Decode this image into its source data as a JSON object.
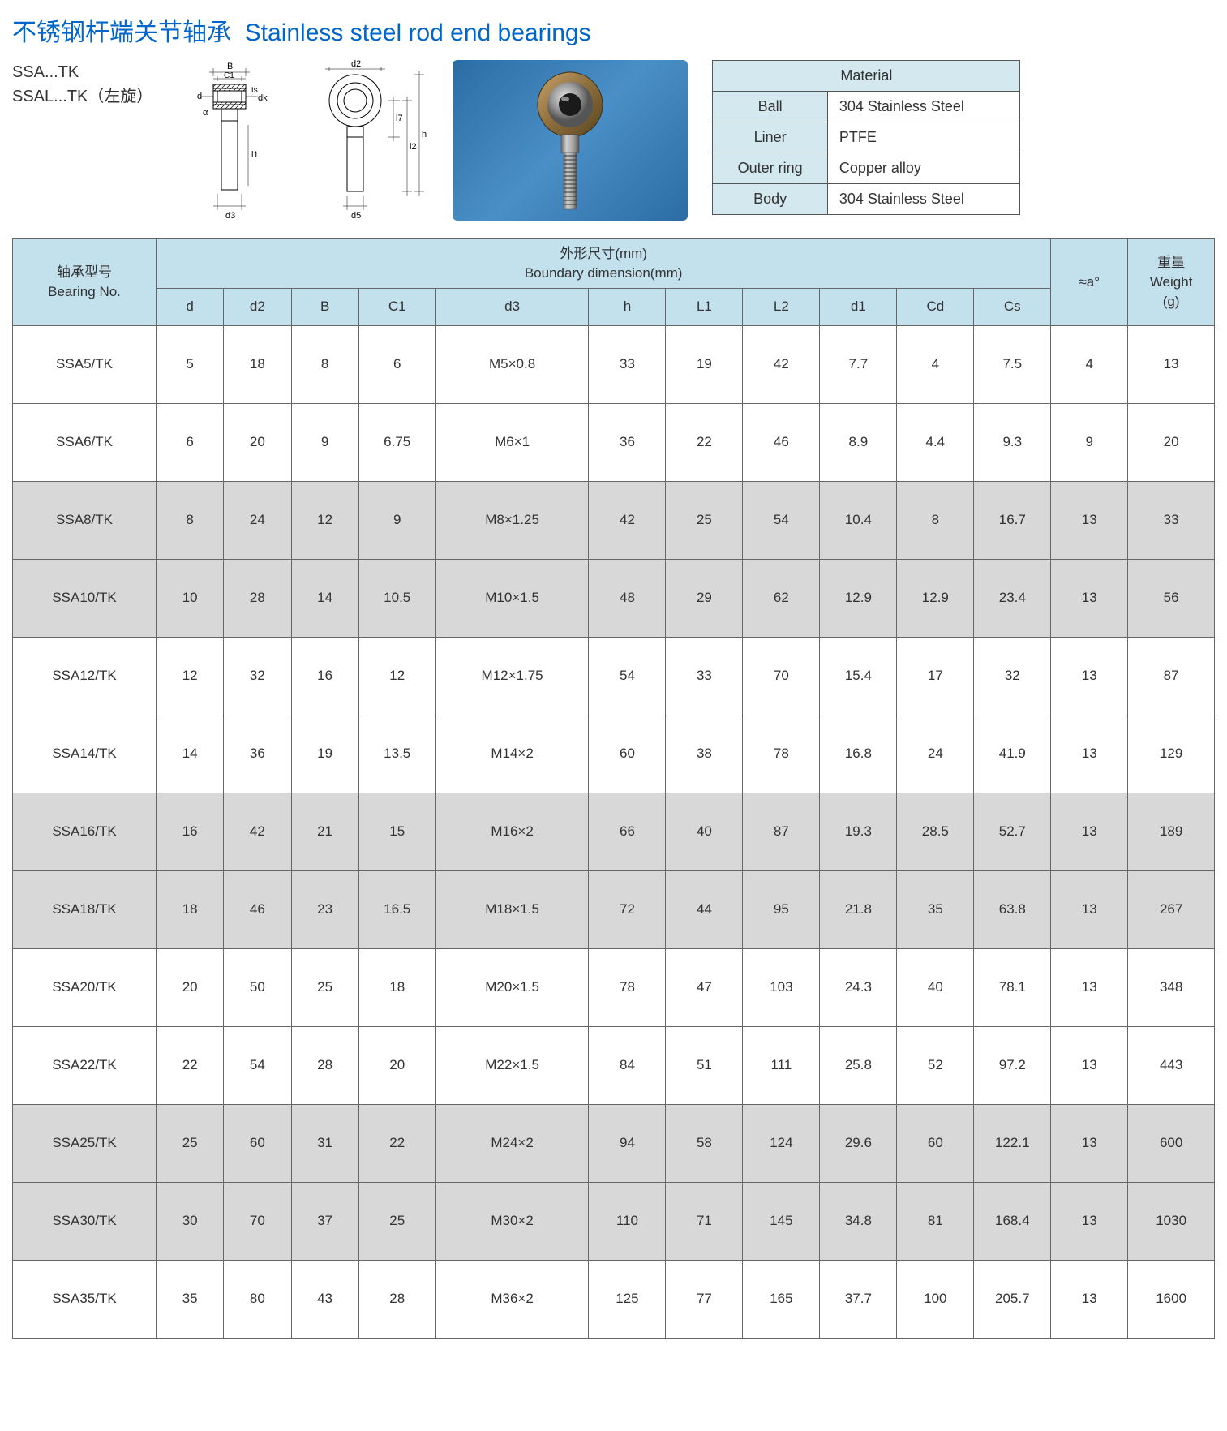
{
  "title_cn": "不锈钢杆端关节轴承",
  "title_en": "Stainless steel rod end bearings",
  "model_line1": "SSA...TK",
  "model_line2": "SSAL...TK（左旋）",
  "diagram_labels": {
    "B": "B",
    "C1": "C1",
    "ts": "ts",
    "d": "d",
    "dk": "dk",
    "a": "α",
    "l1": "l1",
    "d3": "d3",
    "d2": "d2",
    "l7": "l7",
    "l2": "l2",
    "h": "h",
    "d5": "d5"
  },
  "material": {
    "header": "Material",
    "rows": [
      {
        "label": "Ball",
        "value": "304 Stainless Steel"
      },
      {
        "label": "Liner",
        "value": "PTFE"
      },
      {
        "label": "Outer ring",
        "value": "Copper alloy"
      },
      {
        "label": "Body",
        "value": "304 Stainless Steel"
      }
    ]
  },
  "table": {
    "bearing_no_cn": "轴承型号",
    "bearing_no_en": "Bearing No.",
    "boundary_cn": "外形尺寸(mm)",
    "boundary_en": "Boundary dimension(mm)",
    "approx_a": "≈a°",
    "weight_cn": "重量",
    "weight_en": "Weight",
    "weight_unit": "(g)",
    "cols": [
      "d",
      "d2",
      "B",
      "C1",
      "d3",
      "h",
      "L1",
      "L2",
      "d1",
      "Cd",
      "Cs"
    ],
    "rows": [
      {
        "no": "SSA5/TK",
        "v": [
          "5",
          "18",
          "8",
          "6",
          "M5×0.8",
          "33",
          "19",
          "42",
          "7.7",
          "4",
          "7.5"
        ],
        "a": "4",
        "w": "13",
        "shade": false
      },
      {
        "no": "SSA6/TK",
        "v": [
          "6",
          "20",
          "9",
          "6.75",
          "M6×1",
          "36",
          "22",
          "46",
          "8.9",
          "4.4",
          "9.3"
        ],
        "a": "9",
        "w": "20",
        "shade": false
      },
      {
        "no": "SSA8/TK",
        "v": [
          "8",
          "24",
          "12",
          "9",
          "M8×1.25",
          "42",
          "25",
          "54",
          "10.4",
          "8",
          "16.7"
        ],
        "a": "13",
        "w": "33",
        "shade": true
      },
      {
        "no": "SSA10/TK",
        "v": [
          "10",
          "28",
          "14",
          "10.5",
          "M10×1.5",
          "48",
          "29",
          "62",
          "12.9",
          "12.9",
          "23.4"
        ],
        "a": "13",
        "w": "56",
        "shade": true
      },
      {
        "no": "SSA12/TK",
        "v": [
          "12",
          "32",
          "16",
          "12",
          "M12×1.75",
          "54",
          "33",
          "70",
          "15.4",
          "17",
          "32"
        ],
        "a": "13",
        "w": "87",
        "shade": false
      },
      {
        "no": "SSA14/TK",
        "v": [
          "14",
          "36",
          "19",
          "13.5",
          "M14×2",
          "60",
          "38",
          "78",
          "16.8",
          "24",
          "41.9"
        ],
        "a": "13",
        "w": "129",
        "shade": false
      },
      {
        "no": "SSA16/TK",
        "v": [
          "16",
          "42",
          "21",
          "15",
          "M16×2",
          "66",
          "40",
          "87",
          "19.3",
          "28.5",
          "52.7"
        ],
        "a": "13",
        "w": "189",
        "shade": true
      },
      {
        "no": "SSA18/TK",
        "v": [
          "18",
          "46",
          "23",
          "16.5",
          "M18×1.5",
          "72",
          "44",
          "95",
          "21.8",
          "35",
          "63.8"
        ],
        "a": "13",
        "w": "267",
        "shade": true
      },
      {
        "no": "SSA20/TK",
        "v": [
          "20",
          "50",
          "25",
          "18",
          "M20×1.5",
          "78",
          "47",
          "103",
          "24.3",
          "40",
          "78.1"
        ],
        "a": "13",
        "w": "348",
        "shade": false
      },
      {
        "no": "SSA22/TK",
        "v": [
          "22",
          "54",
          "28",
          "20",
          "M22×1.5",
          "84",
          "51",
          "111",
          "25.8",
          "52",
          "97.2"
        ],
        "a": "13",
        "w": "443",
        "shade": false
      },
      {
        "no": "SSA25/TK",
        "v": [
          "25",
          "60",
          "31",
          "22",
          "M24×2",
          "94",
          "58",
          "124",
          "29.6",
          "60",
          "122.1"
        ],
        "a": "13",
        "w": "600",
        "shade": true
      },
      {
        "no": "SSA30/TK",
        "v": [
          "30",
          "70",
          "37",
          "25",
          "M30×2",
          "110",
          "71",
          "145",
          "34.8",
          "81",
          "168.4"
        ],
        "a": "13",
        "w": "1030",
        "shade": true
      },
      {
        "no": "SSA35/TK",
        "v": [
          "35",
          "80",
          "43",
          "28",
          "M36×2",
          "125",
          "77",
          "165",
          "37.7",
          "100",
          "205.7"
        ],
        "a": "13",
        "w": "1600",
        "shade": false
      }
    ]
  },
  "colors": {
    "title": "#0066cc",
    "header_bg": "#c3e0ed",
    "shade_bg": "#d8d8d8",
    "border": "#666666",
    "mat_bg": "#d4e8f0",
    "photo_bg": "#3a7fb5"
  }
}
